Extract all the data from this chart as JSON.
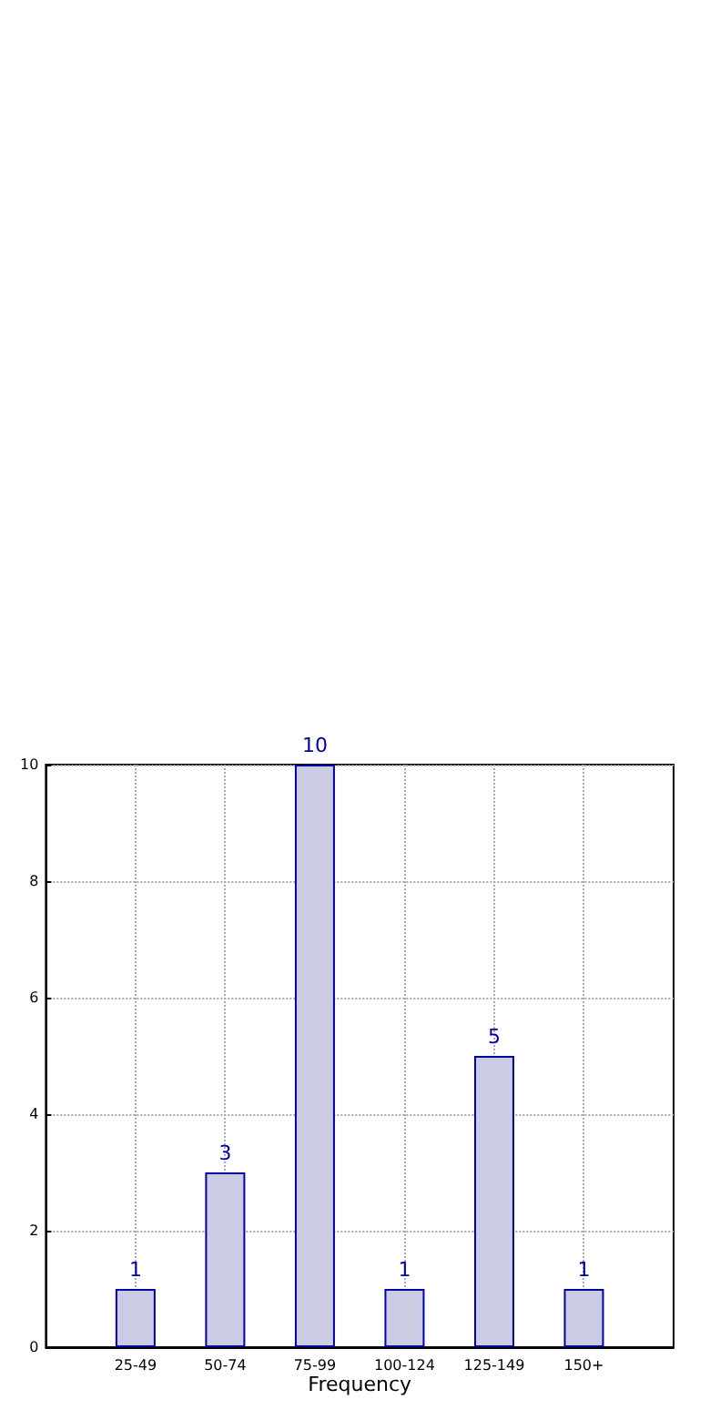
{
  "chart_data": {
    "type": "bar",
    "xlabel": "Frequency",
    "categories": [
      "25-49",
      "50-74",
      "75-99",
      "100-124",
      "125-149",
      "150+"
    ],
    "values": [
      1,
      3,
      10,
      1,
      5,
      1
    ],
    "color": "#cbcbe3",
    "ylim": [
      0,
      10
    ],
    "yticks": [
      0,
      2,
      4,
      6,
      8,
      10
    ],
    "grid": true,
    "data_labels": true
  }
}
